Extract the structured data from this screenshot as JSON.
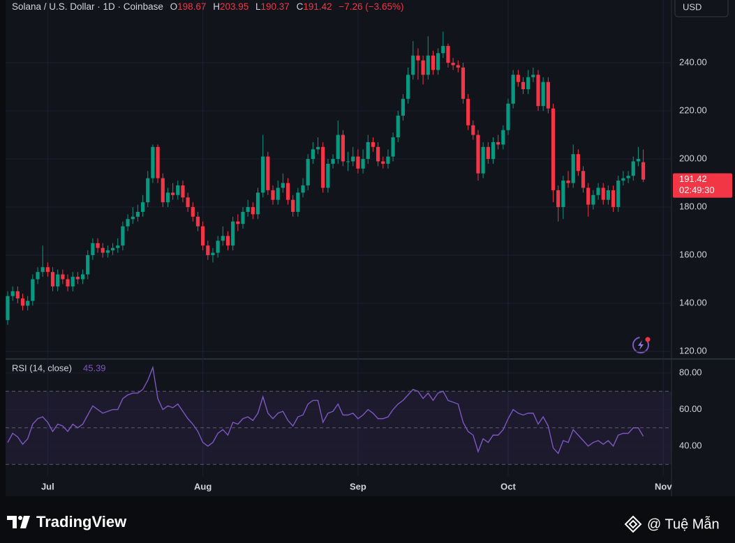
{
  "header": {
    "symbol": "Solana / U.S. Dollar · 1D · Coinbase",
    "ohlc_labels": [
      "O",
      "H",
      "L",
      "C"
    ],
    "change": "−7.26 (−3.65%)",
    "currency": "USD"
  },
  "footer": {
    "brand": "TradingView",
    "credit": "@ Tuệ Mẫn"
  },
  "chart_data": [
    {
      "type": "candlestick",
      "up_color": "#089981",
      "down_color": "#f23645",
      "grid": true,
      "categories": [
        null,
        null,
        null,
        null,
        null,
        null,
        null,
        null,
        "Jul",
        null,
        null,
        null,
        null,
        null,
        null,
        null,
        null,
        null,
        null,
        null,
        null,
        null,
        null,
        null,
        null,
        null,
        null,
        null,
        null,
        null,
        null,
        null,
        null,
        null,
        null,
        null,
        null,
        null,
        null,
        "Aug",
        null,
        null,
        null,
        null,
        null,
        null,
        null,
        null,
        null,
        null,
        null,
        null,
        null,
        null,
        null,
        null,
        null,
        null,
        null,
        null,
        null,
        null,
        null,
        null,
        null,
        null,
        null,
        null,
        null,
        null,
        "Sep",
        null,
        null,
        null,
        null,
        null,
        null,
        null,
        null,
        null,
        null,
        null,
        null,
        null,
        null,
        null,
        null,
        null,
        null,
        null,
        null,
        null,
        null,
        null,
        null,
        null,
        null,
        null,
        null,
        null,
        "Oct",
        null,
        null,
        null,
        null,
        null,
        null,
        null,
        null,
        null,
        null,
        null,
        null,
        null,
        null,
        null,
        null,
        null,
        null,
        null,
        null,
        null,
        null,
        null,
        null,
        null,
        null,
        null,
        null,
        null,
        null,
        "Nov"
      ],
      "open": [
        133,
        143,
        145,
        142,
        139,
        141,
        150,
        153,
        155,
        153,
        147,
        152,
        150,
        147,
        151,
        150,
        152,
        160,
        165,
        163,
        161,
        162,
        163,
        164,
        172,
        175,
        176,
        178,
        182,
        192,
        205,
        192,
        182,
        186,
        185,
        189,
        184,
        180,
        176,
        172,
        164,
        160,
        161,
        166,
        168,
        164,
        174,
        173,
        178,
        180,
        177,
        186,
        201,
        187,
        183,
        188,
        190,
        183,
        178,
        186,
        189,
        200,
        204,
        205,
        188,
        198,
        200,
        210,
        199,
        199,
        201,
        196,
        200,
        207,
        205,
        199,
        198,
        201,
        209,
        218,
        225,
        235,
        243,
        241,
        235,
        243,
        237,
        244,
        247,
        240,
        239,
        238,
        225,
        214,
        210,
        194,
        205,
        200,
        207,
        206,
        212,
        223,
        235,
        232,
        229,
        234,
        235,
        222,
        232,
        221,
        187,
        180,
        191,
        190,
        202,
        195,
        188,
        181,
        185,
        188,
        183,
        187,
        180,
        191,
        192,
        193,
        199,
        198.67,
        null,
        null,
        null,
        null
      ],
      "high": [
        145,
        147,
        147,
        144,
        143,
        152,
        155,
        164,
        157,
        155,
        154,
        154,
        152,
        153,
        153,
        154,
        162,
        167,
        167,
        165,
        164,
        165,
        167,
        174,
        177,
        180,
        181,
        185,
        195,
        206,
        206,
        194,
        188,
        190,
        191,
        191,
        186,
        182,
        178,
        174,
        166,
        163,
        168,
        172,
        170,
        176,
        177,
        180,
        183,
        182,
        188,
        210,
        203,
        189,
        191,
        194,
        192,
        185,
        188,
        192,
        202,
        207,
        209,
        207,
        200,
        202,
        216,
        212,
        203,
        205,
        204,
        204,
        210,
        209,
        207,
        201,
        204,
        211,
        220,
        227,
        238,
        249,
        246,
        243,
        251,
        245,
        246,
        253,
        248,
        242,
        241,
        240,
        227,
        216,
        212,
        207,
        207,
        209,
        210,
        214,
        225,
        237,
        237,
        234,
        237,
        238,
        237,
        234,
        234,
        223,
        189,
        193,
        195,
        206,
        204,
        197,
        190,
        187,
        190,
        190,
        189,
        189,
        193,
        195,
        195,
        201,
        205,
        203.95,
        null,
        null,
        null,
        null
      ],
      "low": [
        131,
        141,
        140,
        137,
        137,
        139,
        148,
        151,
        151,
        145,
        145,
        148,
        145,
        145,
        148,
        148,
        150,
        158,
        161,
        159,
        159,
        160,
        161,
        162,
        170,
        173,
        174,
        176,
        180,
        190,
        190,
        180,
        180,
        183,
        183,
        182,
        178,
        174,
        170,
        162,
        158,
        157,
        159,
        164,
        162,
        162,
        170,
        171,
        176,
        175,
        175,
        184,
        185,
        181,
        181,
        186,
        181,
        176,
        176,
        184,
        187,
        198,
        202,
        186,
        186,
        196,
        198,
        197,
        195,
        197,
        194,
        194,
        198,
        203,
        197,
        196,
        196,
        199,
        207,
        216,
        223,
        233,
        233,
        231,
        233,
        235,
        235,
        242,
        238,
        237,
        236,
        223,
        212,
        208,
        191,
        192,
        198,
        198,
        204,
        204,
        210,
        221,
        230,
        227,
        227,
        232,
        220,
        220,
        219,
        182,
        174,
        175,
        188,
        188,
        193,
        186,
        176,
        179,
        183,
        181,
        181,
        178,
        178,
        189,
        190,
        191,
        197,
        190.37,
        null,
        null,
        null,
        null
      ],
      "close": [
        143,
        145,
        142,
        139,
        141,
        150,
        153,
        155,
        153,
        147,
        152,
        150,
        147,
        151,
        150,
        152,
        160,
        165,
        163,
        161,
        162,
        163,
        164,
        172,
        175,
        176,
        178,
        182,
        192,
        205,
        192,
        182,
        186,
        185,
        189,
        184,
        180,
        176,
        172,
        164,
        160,
        161,
        166,
        168,
        164,
        174,
        173,
        178,
        180,
        177,
        186,
        201,
        187,
        183,
        188,
        190,
        183,
        178,
        186,
        189,
        200,
        204,
        205,
        188,
        198,
        200,
        210,
        199,
        199,
        201,
        196,
        200,
        207,
        205,
        199,
        198,
        201,
        209,
        218,
        225,
        235,
        243,
        241,
        235,
        243,
        237,
        244,
        247,
        240,
        239,
        238,
        225,
        214,
        210,
        194,
        205,
        200,
        207,
        206,
        212,
        223,
        235,
        232,
        229,
        234,
        235,
        222,
        232,
        221,
        187,
        180,
        191,
        190,
        202,
        195,
        188,
        181,
        185,
        188,
        183,
        187,
        180,
        191,
        192,
        193,
        199,
        200,
        191.42,
        null,
        null,
        null,
        null
      ],
      "ylim": [
        117.7,
        266.1
      ],
      "yticks": [
        {
          "value": 120,
          "label": "120.00"
        },
        {
          "value": 140,
          "label": "140.00"
        },
        {
          "value": 160,
          "label": "160.00"
        },
        {
          "value": 180,
          "label": "180.00"
        },
        {
          "value": 200,
          "label": "200.00"
        },
        {
          "value": 220,
          "label": "220.00"
        },
        {
          "value": 240,
          "label": "240.00"
        }
      ],
      "countdown": "02:49:30"
    },
    {
      "type": "line",
      "title": "RSI (14, close)",
      "color": "#7e57c2",
      "bands": [
        30,
        50,
        70
      ],
      "values": [
        42,
        47,
        45,
        41,
        44,
        52,
        55,
        56,
        53,
        48,
        52,
        51,
        48,
        52,
        50,
        52,
        57,
        62,
        60,
        58,
        59,
        60,
        60,
        66,
        68,
        69,
        69,
        71,
        76,
        83,
        66,
        60,
        62,
        61,
        63,
        59,
        55,
        52,
        48,
        42,
        40,
        42,
        47,
        49,
        46,
        53,
        52,
        55,
        56,
        54,
        58,
        67,
        58,
        55,
        58,
        59,
        54,
        51,
        56,
        57,
        63,
        65,
        65,
        53,
        58,
        59,
        63,
        57,
        57,
        58,
        55,
        57,
        60,
        58,
        55,
        55,
        56,
        60,
        63,
        65,
        68,
        71,
        70,
        66,
        69,
        65,
        69,
        70,
        65,
        64,
        63,
        53,
        48,
        46,
        37,
        44,
        42,
        46,
        46,
        49,
        55,
        60,
        58,
        57,
        58,
        58,
        52,
        56,
        51,
        39,
        36,
        43,
        42,
        49,
        46,
        43,
        40,
        42,
        43,
        41,
        43,
        40,
        46,
        47,
        47,
        50,
        50,
        45.39,
        null,
        null,
        null,
        null
      ],
      "ylim": [
        23.6,
        86.5
      ],
      "yticks": [
        {
          "value": 40,
          "label": "40.00"
        },
        {
          "value": 60,
          "label": "60.00"
        },
        {
          "value": 80,
          "label": "80.00"
        }
      ]
    }
  ]
}
